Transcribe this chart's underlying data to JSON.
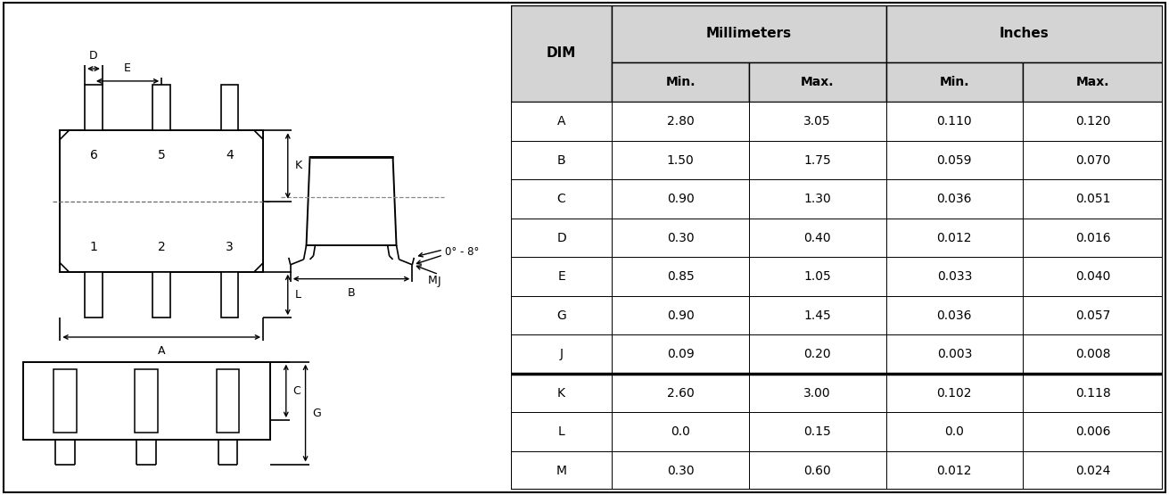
{
  "table_data": {
    "rows": [
      [
        "A",
        "2.80",
        "3.05",
        "0.110",
        "0.120"
      ],
      [
        "B",
        "1.50",
        "1.75",
        "0.059",
        "0.070"
      ],
      [
        "C",
        "0.90",
        "1.30",
        "0.036",
        "0.051"
      ],
      [
        "D",
        "0.30",
        "0.40",
        "0.012",
        "0.016"
      ],
      [
        "E",
        "0.85",
        "1.05",
        "0.033",
        "0.040"
      ],
      [
        "G",
        "0.90",
        "1.45",
        "0.036",
        "0.057"
      ],
      [
        "J",
        "0.09",
        "0.20",
        "0.003",
        "0.008"
      ],
      [
        "K",
        "2.60",
        "3.00",
        "0.102",
        "0.118"
      ],
      [
        "L",
        "0.0",
        "0.15",
        "0.0",
        "0.006"
      ],
      [
        "M",
        "0.30",
        "0.60",
        "0.012",
        "0.024"
      ]
    ]
  },
  "colors": {
    "header_bg": "#d4d4d4",
    "border": "#000000",
    "thick_border_after_row": 6
  }
}
